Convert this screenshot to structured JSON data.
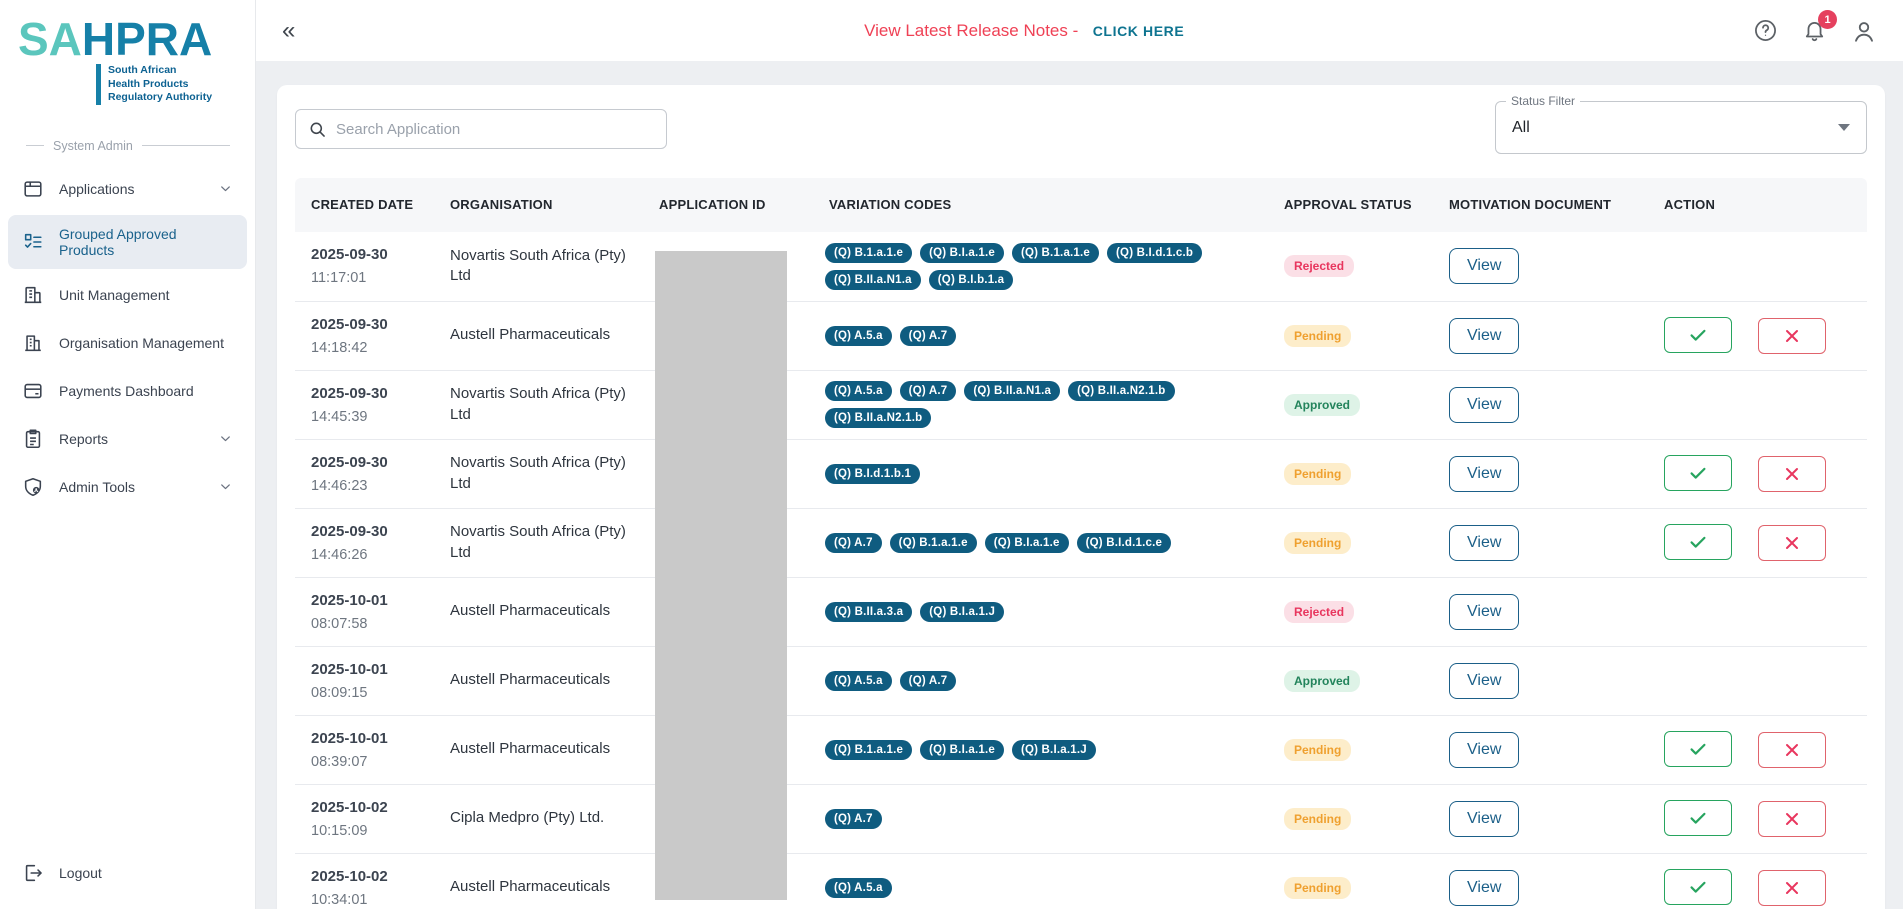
{
  "sidebar": {
    "logo": {
      "part1": "SA",
      "part2": "HPRA",
      "tagline": "South African\nHealth Products\nRegulatory Authority"
    },
    "section_label": "System Admin",
    "items": [
      {
        "label": "Applications",
        "icon": "applications-icon",
        "active": false,
        "chevron": true
      },
      {
        "label": "Grouped Approved Products",
        "icon": "grouped-products-icon",
        "active": true,
        "chevron": false
      },
      {
        "label": "Unit Management",
        "icon": "unit-management-icon",
        "active": false,
        "chevron": false
      },
      {
        "label": "Organisation Management",
        "icon": "organisation-management-icon",
        "active": false,
        "chevron": false
      },
      {
        "label": "Payments Dashboard",
        "icon": "payments-dashboard-icon",
        "active": false,
        "chevron": false
      },
      {
        "label": "Reports",
        "icon": "reports-icon",
        "active": false,
        "chevron": true
      },
      {
        "label": "Admin Tools",
        "icon": "admin-tools-icon",
        "active": false,
        "chevron": true
      }
    ],
    "logout_label": "Logout"
  },
  "topbar": {
    "collapse_glyph": "«",
    "release_text": "View Latest Release Notes -",
    "release_link": "CLICK HERE",
    "notification_count": "1"
  },
  "filters": {
    "search_placeholder": "Search Application",
    "status_label": "Status Filter",
    "status_value": "All"
  },
  "table": {
    "headers": [
      "CREATED DATE",
      "ORGANISATION",
      "APPLICATION ID",
      "VARIATION CODES",
      "APPROVAL STATUS",
      "MOTIVATION DOCUMENT",
      "ACTION"
    ],
    "view_label": "View",
    "rows": [
      {
        "date": "2025-09-30",
        "time": "11:17:01",
        "organisation": "Novartis South Africa (Pty) Ltd",
        "codes": [
          "(Q) B.1.a.1.e",
          "(Q) B.I.a.1.e",
          "(Q) B.1.a.1.e",
          "(Q) B.I.d.1.c.b",
          "(Q) B.II.a.N1.a",
          "(Q) B.I.b.1.a"
        ],
        "status": "Rejected",
        "actions": false
      },
      {
        "date": "2025-09-30",
        "time": "14:18:42",
        "organisation": "Austell Pharmaceuticals",
        "codes": [
          "(Q) A.5.a",
          "(Q) A.7"
        ],
        "status": "Pending",
        "actions": true
      },
      {
        "date": "2025-09-30",
        "time": "14:45:39",
        "organisation": "Novartis South Africa (Pty) Ltd",
        "codes": [
          "(Q) A.5.a",
          "(Q) A.7",
          "(Q) B.II.a.N1.a",
          "(Q) B.II.a.N2.1.b",
          "(Q) B.II.a.N2.1.b"
        ],
        "status": "Approved",
        "actions": false
      },
      {
        "date": "2025-09-30",
        "time": "14:46:23",
        "organisation": "Novartis South Africa (Pty) Ltd",
        "codes": [
          "(Q) B.I.d.1.b.1"
        ],
        "status": "Pending",
        "actions": true
      },
      {
        "date": "2025-09-30",
        "time": "14:46:26",
        "organisation": "Novartis South Africa (Pty) Ltd",
        "codes": [
          "(Q) A.7",
          "(Q) B.1.a.1.e",
          "(Q) B.I.a.1.e",
          "(Q) B.I.d.1.c.e"
        ],
        "status": "Pending",
        "actions": true
      },
      {
        "date": "2025-10-01",
        "time": "08:07:58",
        "organisation": "Austell Pharmaceuticals",
        "codes": [
          "(Q) B.II.a.3.a",
          "(Q) B.I.a.1.J"
        ],
        "status": "Rejected",
        "actions": false
      },
      {
        "date": "2025-10-01",
        "time": "08:09:15",
        "organisation": "Austell Pharmaceuticals",
        "codes": [
          "(Q) A.5.a",
          "(Q) A.7"
        ],
        "status": "Approved",
        "actions": false
      },
      {
        "date": "2025-10-01",
        "time": "08:39:07",
        "organisation": "Austell Pharmaceuticals",
        "codes": [
          "(Q) B.1.a.1.e",
          "(Q) B.I.a.1.e",
          "(Q) B.I.a.1.J"
        ],
        "status": "Pending",
        "actions": true
      },
      {
        "date": "2025-10-02",
        "time": "10:15:09",
        "organisation": "Cipla Medpro (Pty) Ltd.",
        "codes": [
          "(Q) A.7"
        ],
        "status": "Pending",
        "actions": true
      },
      {
        "date": "2025-10-02",
        "time": "10:34:01",
        "organisation": "Austell Pharmaceuticals",
        "codes": [
          "(Q) A.5.a"
        ],
        "status": "Pending",
        "actions": true
      }
    ]
  },
  "colors": {
    "logo_light": "#5bc6bd",
    "logo_dark": "#1680a8",
    "release_red": "#ef4155",
    "link_teal": "#0e7490",
    "badge_red": "#e5405e",
    "chip_navy": "#0f5c80",
    "view_border": "#1b5f88",
    "approve": "#27a45f",
    "reject": "#e0636c",
    "rejected_bg": "#fbdfe6",
    "rejected_text": "#e8365e",
    "pending_bg": "#fdedca",
    "pending_text": "#efa02f",
    "approved_bg": "#def3e7",
    "approved_text": "#23845c"
  }
}
